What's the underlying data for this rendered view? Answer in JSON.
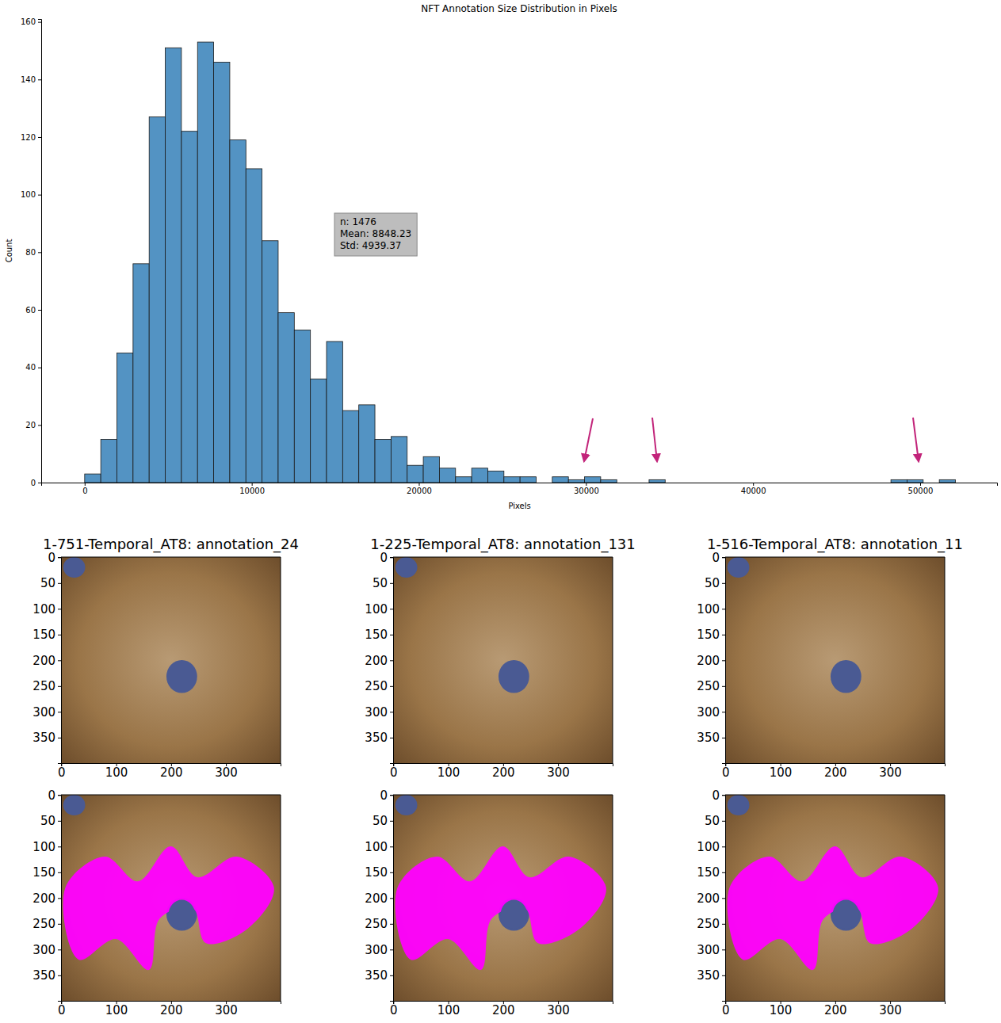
{
  "chart_data": [
    {
      "type": "histogram",
      "title": "NFT Annotation Size Distribution in Pixels",
      "x_label": "Pixels",
      "y_label": "Count",
      "annotations": [
        "n: 1476",
        "Mean: 8848.23",
        "Std: 4939.37"
      ],
      "bins": [
        0,
        965,
        1930,
        2895,
        3860,
        4825,
        5790,
        6755,
        7720,
        8685,
        9650,
        10615,
        11580,
        12545,
        13510,
        14475,
        15440,
        16405,
        17370,
        18335,
        19300,
        20265,
        21230,
        22195,
        23160,
        24125,
        25090,
        26055,
        27020,
        27985,
        28950,
        29915,
        30880,
        31845,
        32810,
        33775,
        34740,
        35705,
        36670,
        37635,
        38600,
        39565,
        40530,
        41495,
        42460,
        43425,
        44390,
        45355,
        46320,
        47285,
        48250,
        49215,
        50180,
        51145,
        52110
      ],
      "values": [
        3,
        15,
        45,
        76,
        127,
        151,
        122,
        153,
        146,
        119,
        109,
        84,
        59,
        53,
        36,
        49,
        25,
        27,
        15,
        16,
        6,
        9,
        5,
        2,
        5,
        4,
        2,
        2,
        0,
        2,
        1,
        2,
        1,
        0,
        0,
        1,
        0,
        0,
        0,
        0,
        0,
        0,
        0,
        0,
        0,
        0,
        0,
        0,
        0,
        0,
        1,
        1,
        0,
        1
      ],
      "color": "#5393c3",
      "xlim": [
        -2600,
        54600
      ],
      "ylim": [
        0,
        161
      ],
      "xticks": [
        0,
        10000,
        20000,
        30000,
        40000,
        50000
      ],
      "yticks": [
        0,
        20,
        40,
        60,
        80,
        100,
        120,
        140,
        160
      ]
    },
    {
      "type": "image",
      "title": "1-751-Temporal_AT8: annotation_24",
      "xlim": [
        -0.5,
        399.5
      ],
      "ylim": [
        399.5,
        -0.5
      ],
      "xticks": [
        0,
        100,
        200,
        300
      ],
      "yticks": [
        0,
        50,
        100,
        150,
        200,
        250,
        300,
        350
      ]
    },
    {
      "type": "image",
      "title": "1-225-Temporal_AT8: annotation_131",
      "xlim": [
        -0.5,
        399.5
      ],
      "ylim": [
        399.5,
        -0.5
      ],
      "xticks": [
        0,
        100,
        200,
        300
      ],
      "yticks": [
        0,
        50,
        100,
        150,
        200,
        250,
        300,
        350
      ]
    },
    {
      "type": "image",
      "title": "1-516-Temporal_AT8: annotation_11",
      "xlim": [
        -0.5,
        399.5
      ],
      "ylim": [
        399.5,
        -0.5
      ],
      "xticks": [
        0,
        100,
        200,
        300
      ],
      "yticks": [
        0,
        50,
        100,
        150,
        200,
        250,
        300,
        350
      ]
    },
    {
      "type": "image",
      "color": "#ff00ff",
      "xlim": [
        -0.5,
        399.5
      ],
      "ylim": [
        399.5,
        -0.5
      ],
      "xticks": [
        0,
        100,
        200,
        300
      ],
      "yticks": [
        0,
        50,
        100,
        150,
        200,
        250,
        300,
        350
      ]
    },
    {
      "type": "image",
      "color": "#ff00ff",
      "xlim": [
        -0.5,
        399.5
      ],
      "ylim": [
        399.5,
        -0.5
      ],
      "xticks": [
        0,
        100,
        200,
        300
      ],
      "yticks": [
        0,
        50,
        100,
        150,
        200,
        250,
        300,
        350
      ]
    },
    {
      "type": "image",
      "color": "#ff00ff",
      "xlim": [
        -0.5,
        399.5
      ],
      "ylim": [
        399.5,
        -0.5
      ],
      "xticks": [
        0,
        100,
        200,
        300
      ],
      "yticks": [
        0,
        50,
        100,
        150,
        200,
        250,
        300,
        350
      ]
    }
  ]
}
